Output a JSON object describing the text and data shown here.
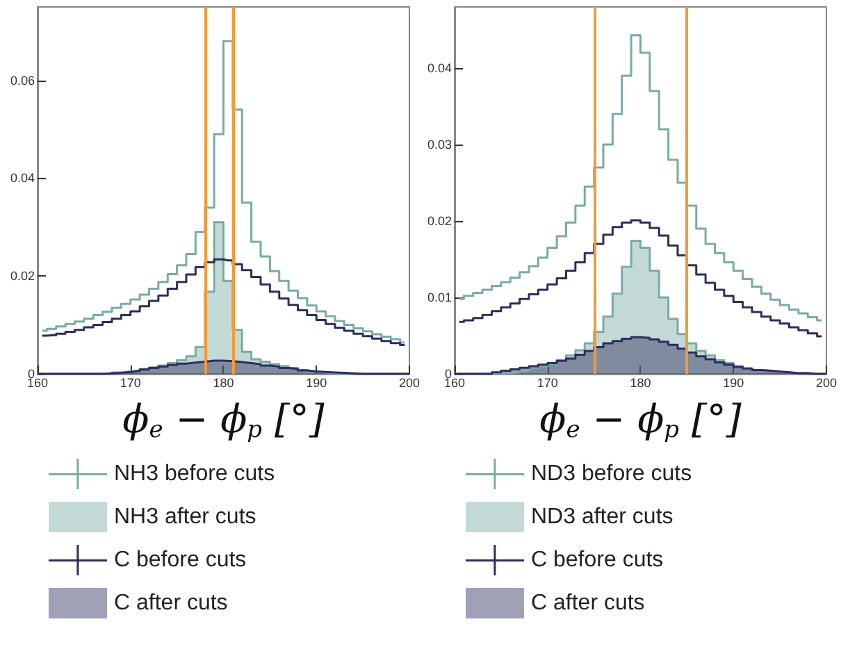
{
  "chart_data": [
    {
      "type": "histogram",
      "xlabel": "ϕ$_{e}$ − ϕ$_{p}$ [°]",
      "bins": [
        160,
        161,
        162,
        163,
        164,
        165,
        166,
        167,
        168,
        169,
        170,
        171,
        172,
        173,
        174,
        175,
        176,
        177,
        178,
        179,
        180,
        181,
        182,
        183,
        184,
        185,
        186,
        187,
        188,
        189,
        190,
        191,
        192,
        193,
        194,
        195,
        196,
        197,
        198,
        199,
        200
      ],
      "series": [
        {
          "name": "NH3 before cuts",
          "type": "step",
          "x": [
            160.5,
            161.5,
            162.5,
            163.5,
            164.5,
            165.5,
            166.5,
            167.5,
            168.5,
            169.5,
            170.5,
            171.5,
            172.5,
            173.5,
            174.5,
            175.5,
            176.5,
            177.5,
            178.5,
            179.5,
            180.5,
            181.5,
            182.5,
            183.5,
            184.5,
            185.5,
            186.5,
            187.5,
            188.5,
            189.5,
            190.5,
            191.5,
            192.5,
            193.5,
            194.5,
            195.5,
            196.5,
            197.5,
            198.5,
            199.5
          ],
          "color": "#79aba5",
          "values": [
            0.0088,
            0.0092,
            0.0097,
            0.0102,
            0.0107,
            0.0113,
            0.012,
            0.0127,
            0.0135,
            0.0143,
            0.0152,
            0.0162,
            0.0174,
            0.0188,
            0.0204,
            0.0222,
            0.0245,
            0.029,
            0.034,
            0.049,
            0.068,
            0.054,
            0.035,
            0.027,
            0.024,
            0.021,
            0.019,
            0.017,
            0.0155,
            0.014,
            0.0128,
            0.0118,
            0.0108,
            0.01,
            0.0093,
            0.0087,
            0.0081,
            0.0076,
            0.0071,
            0.0064
          ]
        },
        {
          "name": "NH3 after cuts",
          "color": "#79aba5",
          "values": [
            0,
            0,
            0,
            0,
            0,
            0,
            0,
            0,
            0.0003,
            0.0005,
            0.0007,
            0.001,
            0.0013,
            0.0017,
            0.0022,
            0.0028,
            0.0036,
            0.0055,
            0.0168,
            0.031,
            0.019,
            0.009,
            0.0045,
            0.003,
            0.0025,
            0.002,
            0.0016,
            0.0012,
            0.0008,
            0.0005,
            0.0003,
            0.0001,
            0.0001,
            0,
            0,
            0,
            0,
            0,
            0,
            0
          ]
        },
        {
          "name": "C before cuts",
          "type": "step",
          "x": [
            160.5,
            161.5,
            162.5,
            163.5,
            164.5,
            165.5,
            166.5,
            167.5,
            168.5,
            169.5,
            170.5,
            171.5,
            172.5,
            173.5,
            174.5,
            175.5,
            176.5,
            177.5,
            178.5,
            179.5,
            180.5,
            181.5,
            182.5,
            183.5,
            184.5,
            185.5,
            186.5,
            187.5,
            188.5,
            189.5,
            190.5,
            191.5,
            192.5,
            193.5,
            194.5,
            195.5,
            196.5,
            197.5,
            198.5,
            199.5
          ],
          "color": "#2d2d5e",
          "values": [
            0.0078,
            0.0079,
            0.0082,
            0.0086,
            0.009,
            0.0095,
            0.01,
            0.0106,
            0.0113,
            0.012,
            0.0128,
            0.0138,
            0.0149,
            0.016,
            0.0174,
            0.0188,
            0.0203,
            0.0218,
            0.0228,
            0.0234,
            0.0232,
            0.0224,
            0.0212,
            0.0198,
            0.0183,
            0.0168,
            0.0154,
            0.0141,
            0.013,
            0.012,
            0.011,
            0.0102,
            0.0094,
            0.0088,
            0.0082,
            0.0077,
            0.0072,
            0.0067,
            0.0063,
            0.0059
          ]
        },
        {
          "name": "C after cuts",
          "color": "#2d2d5e",
          "values": [
            0,
            0,
            0,
            0,
            0,
            0,
            0,
            0.0001,
            0.0002,
            0.0004,
            0.0006,
            0.0009,
            0.0012,
            0.0015,
            0.0018,
            0.0021,
            0.0023,
            0.0025,
            0.0027,
            0.0027,
            0.0026,
            0.0024,
            0.0022,
            0.002,
            0.0017,
            0.0015,
            0.0012,
            0.001,
            0.0007,
            0.0005,
            0.0004,
            0.0003,
            0.0002,
            0.0001,
            0,
            0,
            0,
            0,
            0,
            0
          ]
        }
      ],
      "xlim": [
        160,
        200
      ],
      "xticks": [
        160,
        170,
        180,
        190,
        200
      ],
      "ylim": [
        0,
        0.075
      ],
      "yticks": [
        0,
        0.02,
        0.04,
        0.06
      ],
      "ref_lines": [
        {
          "axis": "x",
          "value": 178,
          "color": "#f39a3a"
        },
        {
          "axis": "x",
          "value": 181,
          "color": "#f39a3a"
        }
      ],
      "grid": false,
      "legend": "bottom"
    },
    {
      "type": "histogram",
      "xlabel": "ϕ$_{e}$ − ϕ$_{p}$ [°]",
      "bins": [
        160,
        161,
        162,
        163,
        164,
        165,
        166,
        167,
        168,
        169,
        170,
        171,
        172,
        173,
        174,
        175,
        176,
        177,
        178,
        179,
        180,
        181,
        182,
        183,
        184,
        185,
        186,
        187,
        188,
        189,
        190,
        191,
        192,
        193,
        194,
        195,
        196,
        197,
        198,
        199,
        200
      ],
      "series": [
        {
          "name": "ND3 before cuts",
          "type": "step",
          "x": [
            160.5,
            161.5,
            162.5,
            163.5,
            164.5,
            165.5,
            166.5,
            167.5,
            168.5,
            169.5,
            170.5,
            171.5,
            172.5,
            173.5,
            174.5,
            175.5,
            176.5,
            177.5,
            178.5,
            179.5,
            180.5,
            181.5,
            182.5,
            183.5,
            184.5,
            185.5,
            186.5,
            187.5,
            188.5,
            189.5,
            190.5,
            191.5,
            192.5,
            193.5,
            194.5,
            195.5,
            196.5,
            197.5,
            198.5,
            199.5
          ],
          "color": "#79aba5",
          "values": [
            0.0098,
            0.0102,
            0.0106,
            0.011,
            0.0115,
            0.012,
            0.0126,
            0.0133,
            0.0141,
            0.0152,
            0.0165,
            0.018,
            0.0198,
            0.022,
            0.0245,
            0.027,
            0.03,
            0.034,
            0.039,
            0.0443,
            0.042,
            0.037,
            0.032,
            0.028,
            0.025,
            0.022,
            0.019,
            0.017,
            0.0158,
            0.0146,
            0.0135,
            0.0124,
            0.0114,
            0.0105,
            0.0097,
            0.009,
            0.0084,
            0.0079,
            0.0074,
            0.007
          ]
        },
        {
          "name": "ND3 after cuts",
          "color": "#79aba5",
          "values": [
            0,
            0,
            0,
            0,
            0,
            0.0001,
            0.0002,
            0.0004,
            0.0008,
            0.001,
            0.0013,
            0.0018,
            0.0024,
            0.0031,
            0.004,
            0.0055,
            0.0075,
            0.0105,
            0.014,
            0.0174,
            0.0165,
            0.0135,
            0.01,
            0.0072,
            0.0052,
            0.004,
            0.003,
            0.0024,
            0.0018,
            0.0014,
            0.001,
            0.0007,
            0.0005,
            0.0004,
            0.0003,
            0.0002,
            0.0001,
            0.0001,
            0,
            0
          ]
        },
        {
          "name": "C before cuts",
          "type": "step",
          "x": [
            160.5,
            161.5,
            162.5,
            163.5,
            164.5,
            165.5,
            166.5,
            167.5,
            168.5,
            169.5,
            170.5,
            171.5,
            172.5,
            173.5,
            174.5,
            175.5,
            176.5,
            177.5,
            178.5,
            179.5,
            180.5,
            181.5,
            182.5,
            183.5,
            184.5,
            185.5,
            186.5,
            187.5,
            188.5,
            189.5,
            190.5,
            191.5,
            192.5,
            193.5,
            194.5,
            195.5,
            196.5,
            197.5,
            198.5,
            199.5
          ],
          "color": "#2d2d5e",
          "values": [
            0.0068,
            0.007,
            0.0073,
            0.0077,
            0.0082,
            0.0087,
            0.0092,
            0.0098,
            0.0104,
            0.011,
            0.0117,
            0.0125,
            0.0135,
            0.0146,
            0.0158,
            0.017,
            0.0182,
            0.0192,
            0.0198,
            0.0201,
            0.0198,
            0.0191,
            0.0181,
            0.0168,
            0.0155,
            0.0142,
            0.013,
            0.0119,
            0.011,
            0.0102,
            0.0094,
            0.0087,
            0.0081,
            0.0075,
            0.007,
            0.0066,
            0.0061,
            0.0057,
            0.0053,
            0.0049
          ]
        },
        {
          "name": "C after cuts",
          "color": "#2d2d5e",
          "values": [
            0,
            0,
            0,
            0,
            0.0002,
            0.0004,
            0.0006,
            0.0008,
            0.001,
            0.0012,
            0.0014,
            0.0017,
            0.002,
            0.0025,
            0.003,
            0.0035,
            0.004,
            0.0043,
            0.0046,
            0.0048,
            0.0047,
            0.0045,
            0.0042,
            0.0038,
            0.0033,
            0.0028,
            0.0023,
            0.0019,
            0.0015,
            0.0012,
            0.0009,
            0.0007,
            0.0005,
            0.0004,
            0.0003,
            0.0002,
            0.0001,
            0.0001,
            0,
            0
          ]
        }
      ],
      "xlim": [
        160,
        200
      ],
      "xticks": [
        160,
        170,
        180,
        190,
        200
      ],
      "ylim": [
        0,
        0.048
      ],
      "yticks": [
        0,
        0.01,
        0.02,
        0.03,
        0.04
      ],
      "ref_lines": [
        {
          "axis": "x",
          "value": 175,
          "color": "#f39a3a"
        },
        {
          "axis": "x",
          "value": 185,
          "color": "#f39a3a"
        }
      ],
      "grid": false,
      "legend": "bottom"
    }
  ]
}
